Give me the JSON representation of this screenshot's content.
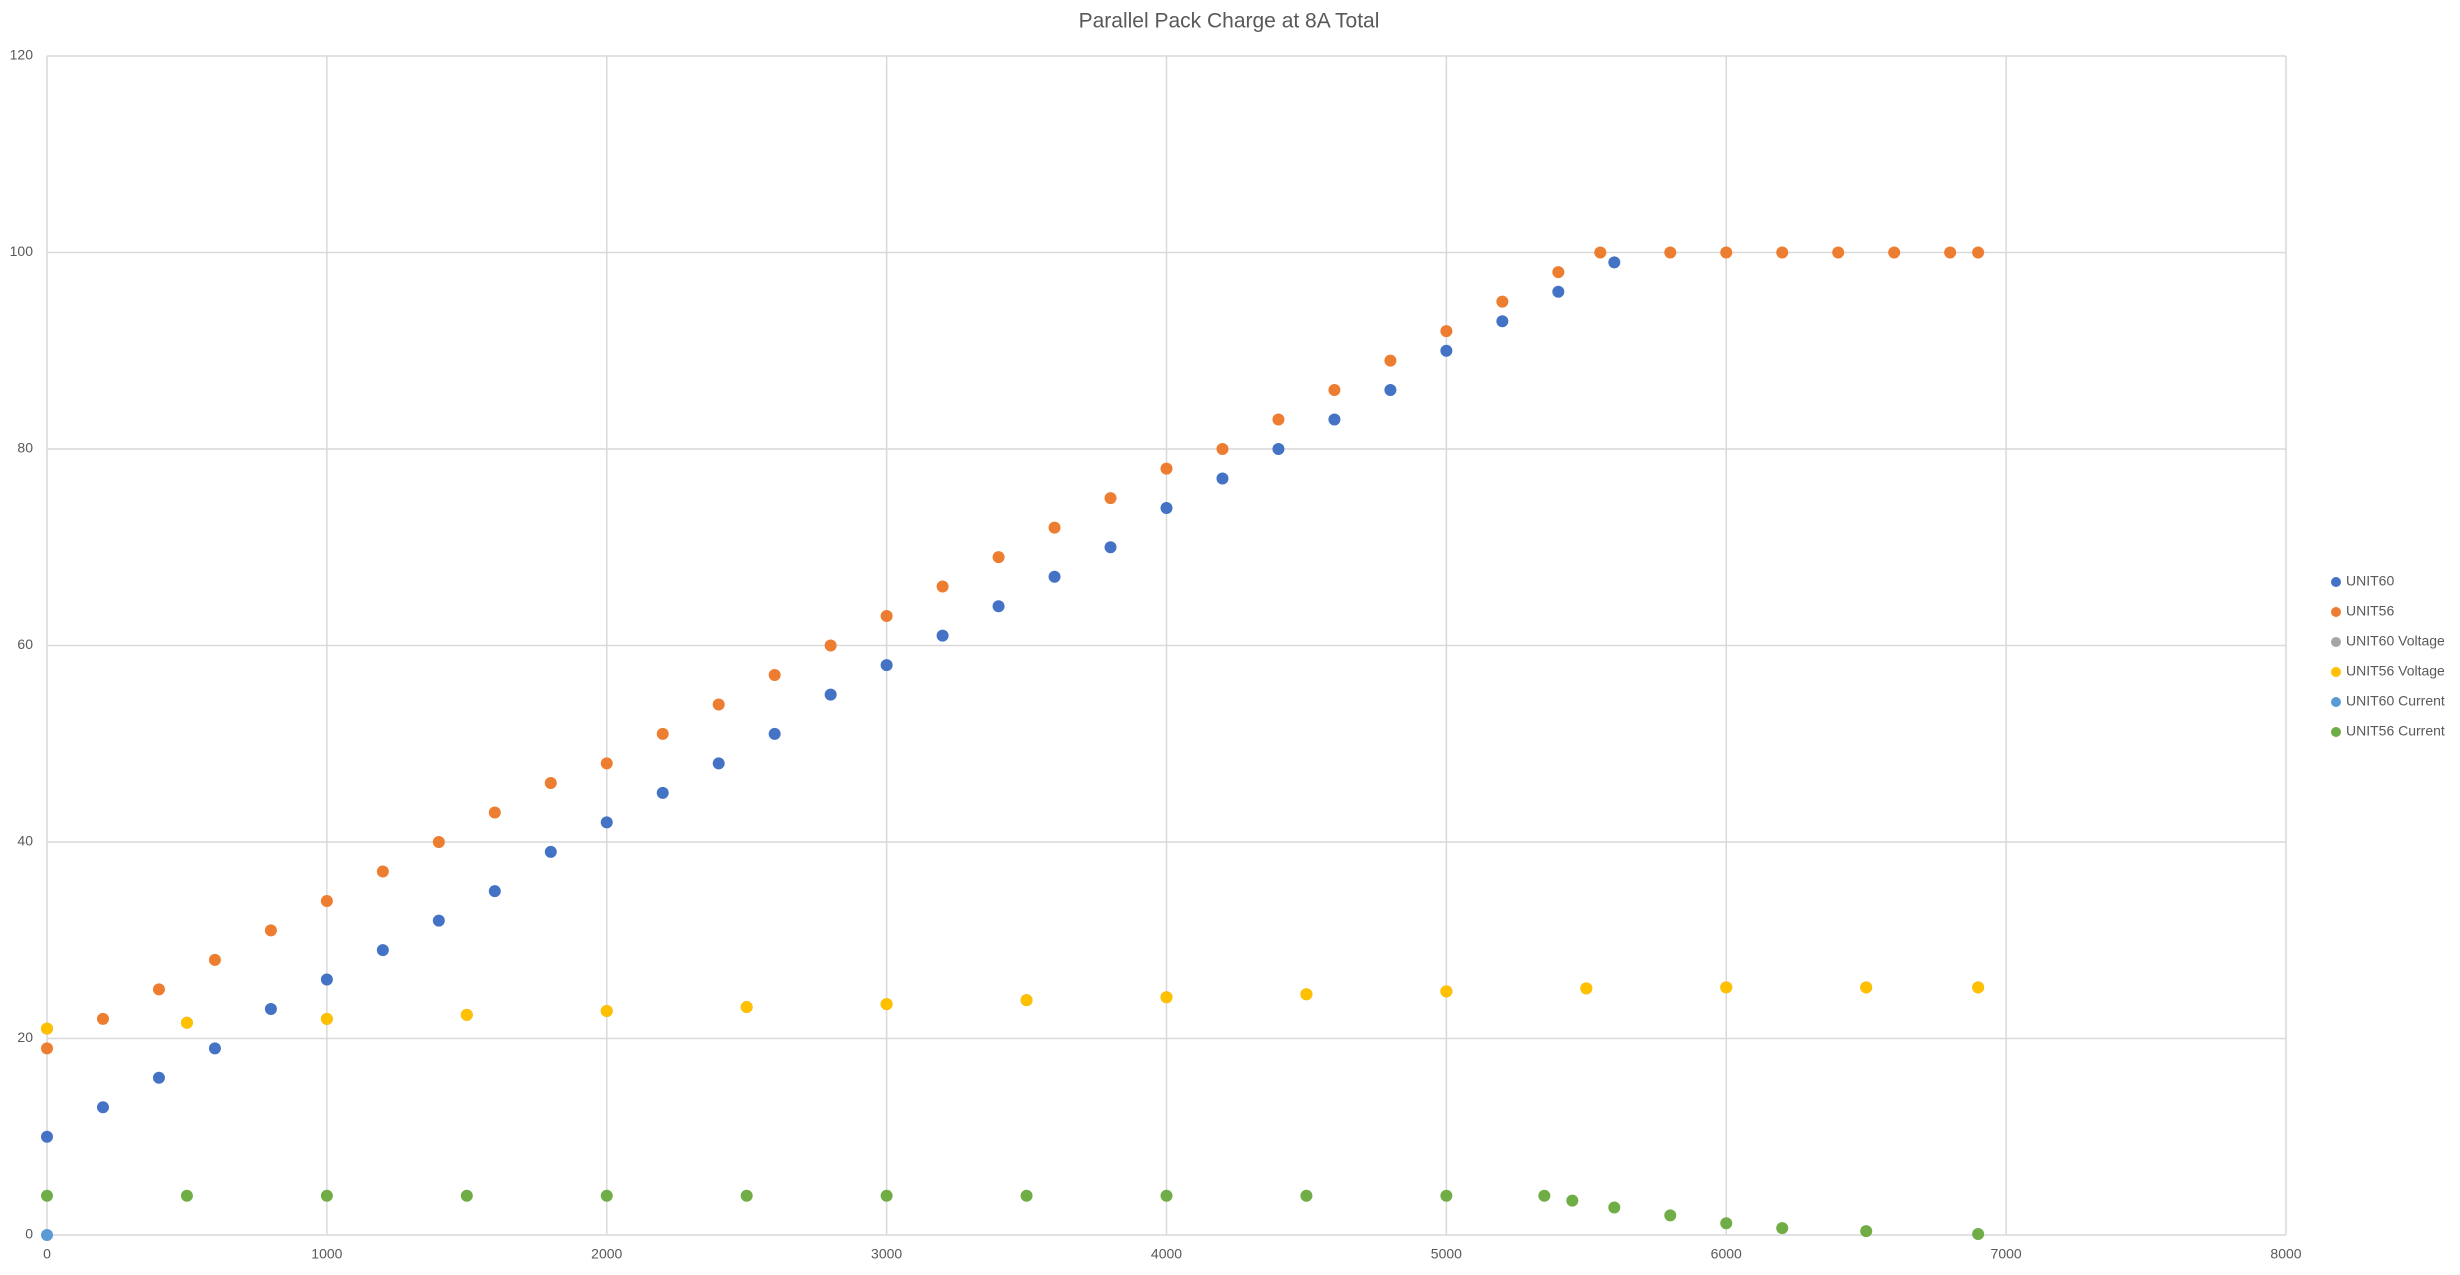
{
  "chart_data": {
    "type": "scatter",
    "title": "Parallel Pack Charge at 8A Total",
    "xlim": [
      0,
      8000
    ],
    "xticks": [
      0,
      1000,
      2000,
      3000,
      4000,
      5000,
      6000,
      7000,
      8000
    ],
    "ylim": [
      0,
      120
    ],
    "yticks": [
      0,
      20,
      40,
      60,
      80,
      100,
      120
    ],
    "grid": true,
    "legend": "right",
    "series": [
      {
        "name": "UNIT60",
        "color": "#4472c4",
        "x": [
          0,
          200,
          400,
          600,
          800,
          1000,
          1200,
          1400,
          1600,
          1800,
          2000,
          2200,
          2400,
          2600,
          2800,
          3000,
          3200,
          3400,
          3600,
          3800,
          4000,
          4200,
          4400,
          4600,
          4800,
          5000,
          5200,
          5400,
          5600
        ],
        "values": [
          10,
          13,
          16,
          19,
          23,
          26,
          29,
          32,
          35,
          39,
          42,
          45,
          48,
          51,
          55,
          58,
          61,
          64,
          67,
          70,
          74,
          77,
          80,
          83,
          86,
          90,
          93,
          96,
          99
        ]
      },
      {
        "name": "UNIT56",
        "color": "#ed7d31",
        "x": [
          0,
          200,
          400,
          600,
          800,
          1000,
          1200,
          1400,
          1600,
          1800,
          2000,
          2200,
          2400,
          2600,
          2800,
          3000,
          3200,
          3400,
          3600,
          3800,
          4000,
          4200,
          4400,
          4600,
          4800,
          5000,
          5200,
          5400,
          5550,
          5800,
          6000,
          6200,
          6400,
          6600,
          6800,
          6900
        ],
        "values": [
          19,
          22,
          25,
          28,
          31,
          34,
          37,
          40,
          43,
          46,
          48,
          51,
          54,
          57,
          60,
          63,
          66,
          69,
          72,
          75,
          78,
          80,
          83,
          86,
          89,
          92,
          95,
          98,
          100,
          100,
          100,
          100,
          100,
          100,
          100,
          100
        ]
      },
      {
        "name": "UNIT60 Voltage",
        "color": "#a5a5a5",
        "x": [
          0,
          500,
          1000,
          1500,
          2000,
          2500,
          3000,
          3500,
          4000,
          4500,
          5000,
          5500,
          6000,
          6500,
          6900
        ],
        "values": [
          21,
          21.6,
          22,
          22.4,
          22.8,
          23.2,
          23.5,
          23.9,
          24.2,
          24.5,
          24.8,
          25.1,
          25.2,
          25.2,
          25.2
        ]
      },
      {
        "name": "UNIT56 Voltage",
        "color": "#ffc000",
        "x": [
          0,
          500,
          1000,
          1500,
          2000,
          2500,
          3000,
          3500,
          4000,
          4500,
          5000,
          5500,
          6000,
          6500,
          6900
        ],
        "values": [
          21,
          21.6,
          22,
          22.4,
          22.8,
          23.2,
          23.5,
          23.9,
          24.2,
          24.5,
          24.8,
          25.1,
          25.2,
          25.2,
          25.2
        ]
      },
      {
        "name": "UNIT60 Current",
        "color": "#5b9bd5",
        "x": [
          0
        ],
        "values": [
          0
        ]
      },
      {
        "name": "UNIT56 Current",
        "color": "#70ad47",
        "x": [
          0,
          500,
          1000,
          1500,
          2000,
          2500,
          3000,
          3500,
          4000,
          4500,
          5000,
          5350,
          5450,
          5600,
          5800,
          6000,
          6200,
          6500,
          6900
        ],
        "values": [
          4,
          4,
          4,
          4,
          4,
          4,
          4,
          4,
          4,
          4,
          4,
          4,
          3.5,
          2.8,
          2,
          1.2,
          0.7,
          0.4,
          0.1
        ]
      }
    ]
  }
}
